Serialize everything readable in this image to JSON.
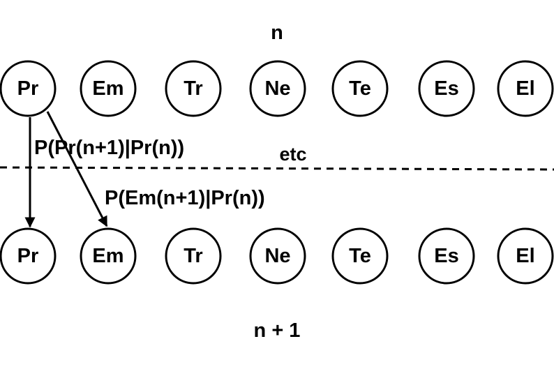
{
  "top_row_label": "n",
  "bottom_row_label": "n + 1",
  "top_nodes": [
    "Pr",
    "Em",
    "Tr",
    "Ne",
    "Te",
    "Es",
    "El"
  ],
  "bottom_nodes": [
    "Pr",
    "Em",
    "Tr",
    "Ne",
    "Te",
    "Es",
    "El"
  ],
  "divider_label": "etc",
  "edges": [
    {
      "from": "Pr",
      "to": "Pr",
      "label": "P(Pr(n+1)|Pr(n))"
    },
    {
      "from": "Pr",
      "to": "Em",
      "label": "P(Em(n+1)|Pr(n))"
    }
  ]
}
